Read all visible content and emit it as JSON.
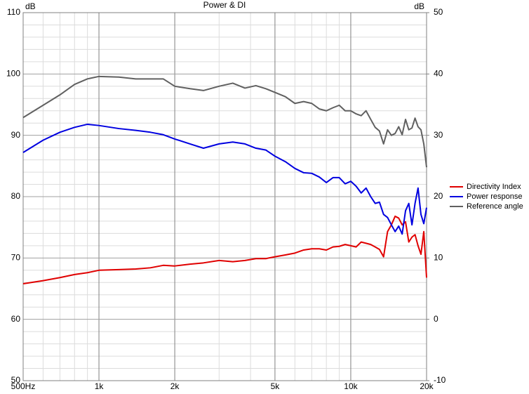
{
  "chart_data": {
    "type": "line",
    "title": "Power & DI",
    "ylabel": "dB",
    "y2label": "dB",
    "xscale": "log",
    "grid": true,
    "legend": "right",
    "xlim": [
      500,
      20000
    ],
    "xticks": [
      {
        "value": 500,
        "label": "500Hz"
      },
      {
        "value": 1000,
        "label": "1k"
      },
      {
        "value": 2000,
        "label": "2k"
      },
      {
        "value": 5000,
        "label": "5k"
      },
      {
        "value": 10000,
        "label": "10k"
      },
      {
        "value": 20000,
        "label": "20k"
      }
    ],
    "xminorticks": [
      600,
      700,
      800,
      900,
      3000,
      4000,
      6000,
      7000,
      8000,
      9000
    ],
    "ylim": [
      50,
      110
    ],
    "yticks": [
      50,
      60,
      70,
      80,
      90,
      100,
      110
    ],
    "yminorticks": [
      52,
      54,
      56,
      58,
      62,
      64,
      66,
      68,
      72,
      74,
      76,
      78,
      82,
      84,
      86,
      88,
      92,
      94,
      96,
      98,
      102,
      104,
      106,
      108
    ],
    "y2lim": [
      -10,
      50
    ],
    "y2ticks": [
      -10,
      0,
      10,
      20,
      30,
      40,
      50
    ],
    "x": [
      500,
      600,
      700,
      800,
      900,
      1000,
      1200,
      1400,
      1600,
      1800,
      2000,
      2300,
      2600,
      3000,
      3400,
      3800,
      4200,
      4600,
      5000,
      5500,
      6000,
      6500,
      7000,
      7500,
      8000,
      8500,
      9000,
      9500,
      10000,
      10500,
      11000,
      11500,
      12000,
      12500,
      13000,
      13500,
      14000,
      14500,
      15000,
      15500,
      16000,
      16500,
      17000,
      17500,
      18000,
      18500,
      19000,
      19500,
      20000
    ],
    "series": [
      {
        "name": "Directivity Index",
        "color": "#e00000",
        "axis": "y2",
        "values": [
          5.8,
          6.3,
          6.8,
          7.3,
          7.6,
          8.0,
          8.1,
          8.2,
          8.4,
          8.8,
          8.7,
          9.0,
          9.2,
          9.6,
          9.4,
          9.6,
          9.9,
          9.9,
          10.2,
          10.5,
          10.8,
          11.3,
          11.5,
          11.5,
          11.3,
          11.8,
          11.9,
          12.2,
          12.0,
          11.8,
          12.6,
          12.4,
          12.2,
          11.8,
          11.4,
          10.2,
          14.3,
          15.4,
          16.8,
          16.5,
          15.4,
          15.9,
          12.6,
          13.4,
          13.8,
          12.0,
          10.6,
          14.3,
          6.8
        ]
      },
      {
        "name": "Power response",
        "color": "#0000e0",
        "values": [
          87.2,
          89.2,
          90.5,
          91.3,
          91.8,
          91.6,
          91.1,
          90.8,
          90.5,
          90.1,
          89.4,
          88.6,
          87.9,
          88.6,
          88.9,
          88.6,
          87.9,
          87.6,
          86.6,
          85.7,
          84.6,
          83.9,
          83.8,
          83.2,
          82.3,
          83.1,
          83.1,
          82.1,
          82.5,
          81.7,
          80.6,
          81.4,
          80.0,
          78.9,
          79.1,
          77.1,
          76.6,
          75.4,
          74.3,
          75.2,
          73.9,
          77.7,
          78.9,
          75.4,
          78.9,
          81.4,
          77.1,
          75.6,
          78.2
        ]
      },
      {
        "name": "Reference angle",
        "color": "#606060",
        "values": [
          92.9,
          94.9,
          96.6,
          98.3,
          99.2,
          99.6,
          99.5,
          99.2,
          99.2,
          99.2,
          98.0,
          97.6,
          97.3,
          98.0,
          98.5,
          97.7,
          98.1,
          97.6,
          97.0,
          96.3,
          95.2,
          95.5,
          95.2,
          94.3,
          94.0,
          94.5,
          94.9,
          94.0,
          94.0,
          93.5,
          93.2,
          94.0,
          92.6,
          91.3,
          90.7,
          88.6,
          90.9,
          90.0,
          90.3,
          91.4,
          90.1,
          92.6,
          90.9,
          91.2,
          92.8,
          91.4,
          90.9,
          88.6,
          84.8
        ]
      }
    ]
  }
}
